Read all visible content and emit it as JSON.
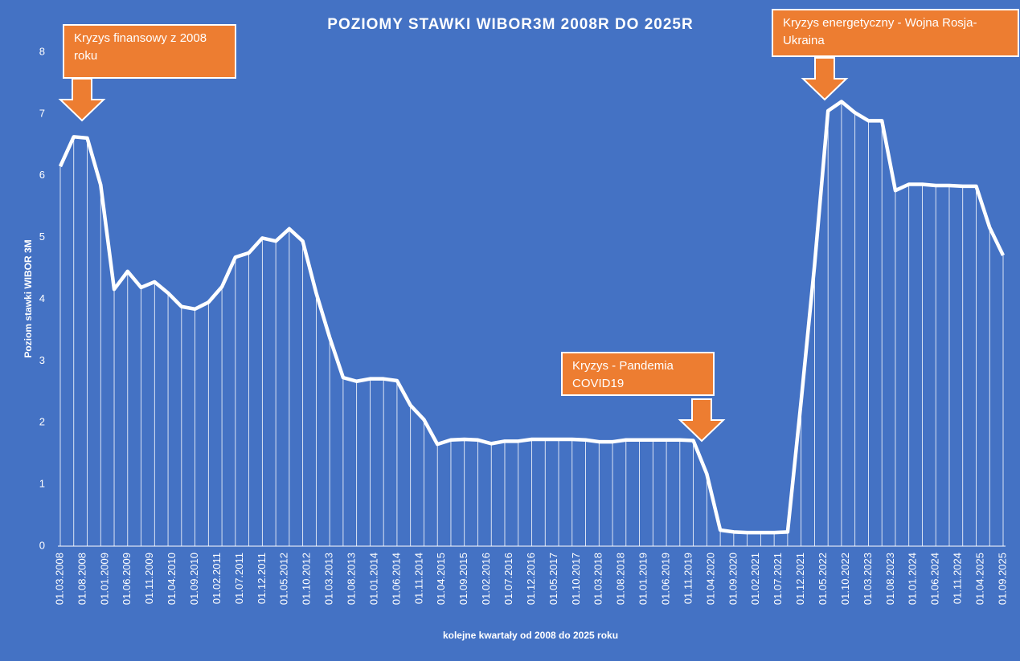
{
  "chart_data": {
    "type": "line",
    "title": "POZIOMY STAWKI WIBOR3M  2008R DO 2025R",
    "y_label": "Poziom stawki WIBOR 3M",
    "x_label": "kolejne kwartały od 2008 do 2025 roku",
    "color": "#ffffff",
    "drop_lines": true,
    "ylim": [
      0,
      8
    ],
    "yticks": [
      0,
      1,
      2,
      3,
      4,
      5,
      6,
      7,
      8
    ],
    "xticks": [
      "01.03.2008",
      "01.08.2008",
      "01.01.2009",
      "01.06.2009",
      "01.11.2009",
      "01.04.2010",
      "01.09.2010",
      "01.02.2011",
      "01.07.2011",
      "01.12.2011",
      "01.05.2012",
      "01.10.2012",
      "01.03.2013",
      "01.08.2013",
      "01.01.2014",
      "01.06.2014",
      "01.11.2014",
      "01.04.2015",
      "01.09.2015",
      "01.02.2016",
      "01.07.2016",
      "01.12.2016",
      "01.05.2017",
      "01.10.2017",
      "01.03.2018",
      "01.08.2018",
      "01.01.2019",
      "01.06.2019",
      "01.11.2019",
      "01.04.2020",
      "01.09.2020",
      "01.02.2021",
      "01.07.2021",
      "01.12.2021",
      "01.05.2022",
      "01.10.2022",
      "01.03.2023",
      "01.08.2023",
      "01.01.2024",
      "01.06.2024",
      "01.11.2024",
      "01.04.2025",
      "01.09.2025"
    ],
    "values": [
      6.15,
      6.63,
      6.61,
      5.85,
      4.16,
      4.45,
      4.19,
      4.28,
      4.1,
      3.88,
      3.84,
      3.95,
      4.2,
      4.68,
      4.75,
      4.99,
      4.94,
      5.14,
      4.94,
      4.1,
      3.38,
      2.73,
      2.67,
      2.71,
      2.71,
      2.68,
      2.28,
      2.05,
      1.65,
      1.72,
      1.73,
      1.72,
      1.66,
      1.7,
      1.7,
      1.73,
      1.73,
      1.73,
      1.73,
      1.72,
      1.69,
      1.69,
      1.72,
      1.72,
      1.72,
      1.72,
      1.72,
      1.71,
      1.17,
      0.26,
      0.23,
      0.22,
      0.22,
      0.22,
      0.23,
      2.34,
      4.55,
      7.05,
      7.2,
      7.02,
      6.89,
      6.89,
      5.76,
      5.86,
      5.86,
      5.84,
      5.84,
      5.83,
      5.83,
      5.16,
      4.71
    ],
    "annotations": [
      "Kryzys finansowy z 2008 roku",
      "Kryzys energetyczny - Wojna Rosja-Ukraina",
      "Kryzys - Pandemia COVID19"
    ],
    "annotation_color": "#ed7d31"
  }
}
